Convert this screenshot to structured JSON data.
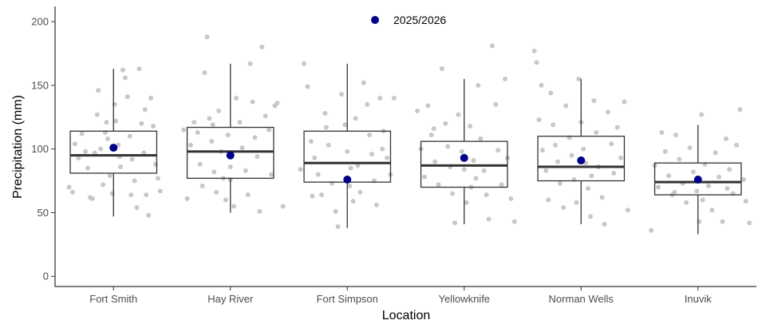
{
  "chart_data": {
    "type": "box",
    "title": "",
    "xlabel": "Location",
    "ylabel": "Precipitation (mm)",
    "ylim": [
      -8,
      212
    ],
    "yticks": [
      0,
      50,
      100,
      150,
      200
    ],
    "grid": false,
    "legend": {
      "placement": "top-center",
      "entries": [
        {
          "name": "2025/2026",
          "color": "#00008B"
        }
      ]
    },
    "colors": {
      "jitter_points": "#C8C8C8",
      "highlight_point": "#00008B",
      "box_line": "#333333",
      "axis": "#000000"
    },
    "categories": [
      "Fort Smith",
      "Hay River",
      "Fort Simpson",
      "Yellowknife",
      "Norman Wells",
      "Inuvik"
    ],
    "boxes": [
      {
        "category": "Fort Smith",
        "min": 47,
        "q1": 81,
        "median": 95,
        "q3": 114,
        "max": 163
      },
      {
        "category": "Hay River",
        "min": 50,
        "q1": 77,
        "median": 98,
        "q3": 117,
        "max": 167
      },
      {
        "category": "Fort Simpson",
        "min": 38,
        "q1": 74,
        "median": 89,
        "q3": 114,
        "max": 167
      },
      {
        "category": "Yellowknife",
        "min": 41,
        "q1": 70,
        "median": 87,
        "q3": 106,
        "max": 155
      },
      {
        "category": "Norman Wells",
        "min": 41,
        "q1": 75,
        "median": 86,
        "q3": 110,
        "max": 155
      },
      {
        "category": "Inuvik",
        "min": 33,
        "q1": 64,
        "median": 74,
        "q3": 89,
        "max": 119
      }
    ],
    "highlight": [
      {
        "category": "Fort Smith",
        "name": "2025/2026",
        "value": 101
      },
      {
        "category": "Hay River",
        "name": "2025/2026",
        "value": 95
      },
      {
        "category": "Fort Simpson",
        "name": "2025/2026",
        "value": 76
      },
      {
        "category": "Yellowknife",
        "name": "2025/2026",
        "value": 93
      },
      {
        "category": "Norman Wells",
        "name": "2025/2026",
        "value": 91
      },
      {
        "category": "Inuvik",
        "name": "2025/2026",
        "value": 76
      }
    ],
    "points": [
      {
        "category": "Fort Smith",
        "values": [
          {
            "o": -0.38,
            "v": 70
          },
          {
            "o": -0.35,
            "v": 66
          },
          {
            "o": -0.3,
            "v": 93
          },
          {
            "o": -0.27,
            "v": 112
          },
          {
            "o": -0.24,
            "v": 98
          },
          {
            "o": -0.22,
            "v": 85
          },
          {
            "o": -0.2,
            "v": 62
          },
          {
            "o": -0.18,
            "v": 61
          },
          {
            "o": -0.16,
            "v": 97
          },
          {
            "o": -0.14,
            "v": 127
          },
          {
            "o": -0.13,
            "v": 146
          },
          {
            "o": -0.11,
            "v": 100
          },
          {
            "o": -0.09,
            "v": 72
          },
          {
            "o": -0.07,
            "v": 113
          },
          {
            "o": -0.05,
            "v": 108
          },
          {
            "o": -0.03,
            "v": 79
          },
          {
            "o": -0.01,
            "v": 65
          },
          {
            "o": 0.01,
            "v": 135
          },
          {
            "o": 0.02,
            "v": 122
          },
          {
            "o": 0.04,
            "v": 103
          },
          {
            "o": 0.06,
            "v": 86
          },
          {
            "o": 0.08,
            "v": 162
          },
          {
            "o": 0.1,
            "v": 156
          },
          {
            "o": 0.12,
            "v": 141
          },
          {
            "o": 0.14,
            "v": 110
          },
          {
            "o": 0.16,
            "v": 92
          },
          {
            "o": 0.18,
            "v": 75
          },
          {
            "o": 0.2,
            "v": 54
          },
          {
            "o": 0.22,
            "v": 163
          },
          {
            "o": 0.24,
            "v": 120
          },
          {
            "o": 0.26,
            "v": 97
          },
          {
            "o": 0.28,
            "v": 64
          },
          {
            "o": 0.3,
            "v": 48
          },
          {
            "o": 0.32,
            "v": 140
          },
          {
            "o": 0.34,
            "v": 118
          },
          {
            "o": 0.36,
            "v": 88
          },
          {
            "o": 0.38,
            "v": 77
          },
          {
            "o": 0.4,
            "v": 67
          },
          {
            "o": -0.33,
            "v": 104
          },
          {
            "o": 0.15,
            "v": 64
          },
          {
            "o": -0.06,
            "v": 121
          },
          {
            "o": 0.05,
            "v": 94
          },
          {
            "o": 0.27,
            "v": 131
          }
        ]
      },
      {
        "category": "Hay River",
        "values": [
          {
            "o": -0.4,
            "v": 115
          },
          {
            "o": -0.37,
            "v": 61
          },
          {
            "o": -0.34,
            "v": 103
          },
          {
            "o": -0.31,
            "v": 121
          },
          {
            "o": -0.28,
            "v": 113
          },
          {
            "o": -0.26,
            "v": 88
          },
          {
            "o": -0.24,
            "v": 71
          },
          {
            "o": -0.22,
            "v": 160
          },
          {
            "o": -0.2,
            "v": 188
          },
          {
            "o": -0.18,
            "v": 124
          },
          {
            "o": -0.16,
            "v": 106
          },
          {
            "o": -0.14,
            "v": 82
          },
          {
            "o": -0.12,
            "v": 66
          },
          {
            "o": -0.1,
            "v": 130
          },
          {
            "o": -0.08,
            "v": 98
          },
          {
            "o": -0.06,
            "v": 77
          },
          {
            "o": -0.04,
            "v": 60
          },
          {
            "o": -0.02,
            "v": 111
          },
          {
            "o": 0.0,
            "v": 86
          },
          {
            "o": 0.03,
            "v": 55
          },
          {
            "o": 0.05,
            "v": 140
          },
          {
            "o": 0.08,
            "v": 121
          },
          {
            "o": 0.1,
            "v": 101
          },
          {
            "o": 0.13,
            "v": 83
          },
          {
            "o": 0.15,
            "v": 64
          },
          {
            "o": 0.17,
            "v": 167
          },
          {
            "o": 0.19,
            "v": 137
          },
          {
            "o": 0.21,
            "v": 109
          },
          {
            "o": 0.23,
            "v": 94
          },
          {
            "o": 0.25,
            "v": 51
          },
          {
            "o": 0.27,
            "v": 180
          },
          {
            "o": 0.3,
            "v": 126
          },
          {
            "o": 0.33,
            "v": 115
          },
          {
            "o": 0.35,
            "v": 80
          },
          {
            "o": 0.38,
            "v": 134
          },
          {
            "o": 0.4,
            "v": 136
          },
          {
            "o": 0.45,
            "v": 55
          },
          {
            "o": -0.15,
            "v": 119
          },
          {
            "o": 0.0,
            "v": 76
          }
        ]
      },
      {
        "category": "Fort Simpson",
        "values": [
          {
            "o": -0.4,
            "v": 84
          },
          {
            "o": -0.37,
            "v": 167
          },
          {
            "o": -0.34,
            "v": 149
          },
          {
            "o": -0.31,
            "v": 106
          },
          {
            "o": -0.28,
            "v": 93
          },
          {
            "o": -0.25,
            "v": 80
          },
          {
            "o": -0.22,
            "v": 64
          },
          {
            "o": -0.19,
            "v": 128
          },
          {
            "o": -0.16,
            "v": 103
          },
          {
            "o": -0.13,
            "v": 73
          },
          {
            "o": -0.1,
            "v": 51
          },
          {
            "o": -0.08,
            "v": 39
          },
          {
            "o": -0.05,
            "v": 143
          },
          {
            "o": -0.02,
            "v": 119
          },
          {
            "o": 0.0,
            "v": 98
          },
          {
            "o": 0.02,
            "v": 71
          },
          {
            "o": 0.05,
            "v": 59
          },
          {
            "o": 0.07,
            "v": 124
          },
          {
            "o": 0.09,
            "v": 87
          },
          {
            "o": 0.11,
            "v": 66
          },
          {
            "o": 0.14,
            "v": 152
          },
          {
            "o": 0.17,
            "v": 135
          },
          {
            "o": 0.19,
            "v": 111
          },
          {
            "o": 0.21,
            "v": 96
          },
          {
            "o": 0.23,
            "v": 75
          },
          {
            "o": 0.25,
            "v": 56
          },
          {
            "o": 0.28,
            "v": 140
          },
          {
            "o": 0.31,
            "v": 114
          },
          {
            "o": 0.34,
            "v": 93
          },
          {
            "o": 0.37,
            "v": 80
          },
          {
            "o": 0.4,
            "v": 140
          },
          {
            "o": -0.3,
            "v": 63
          },
          {
            "o": -0.18,
            "v": 117
          },
          {
            "o": 0.03,
            "v": 85
          },
          {
            "o": 0.3,
            "v": 100
          }
        ]
      },
      {
        "category": "Yellowknife",
        "values": [
          {
            "o": -0.4,
            "v": 130
          },
          {
            "o": -0.37,
            "v": 100
          },
          {
            "o": -0.34,
            "v": 78
          },
          {
            "o": -0.31,
            "v": 134
          },
          {
            "o": -0.28,
            "v": 111
          },
          {
            "o": -0.25,
            "v": 90
          },
          {
            "o": -0.22,
            "v": 72
          },
          {
            "o": -0.19,
            "v": 163
          },
          {
            "o": -0.16,
            "v": 120
          },
          {
            "o": -0.14,
            "v": 102
          },
          {
            "o": -0.12,
            "v": 86
          },
          {
            "o": -0.1,
            "v": 65
          },
          {
            "o": -0.08,
            "v": 42
          },
          {
            "o": -0.05,
            "v": 127
          },
          {
            "o": -0.02,
            "v": 98
          },
          {
            "o": 0.0,
            "v": 84
          },
          {
            "o": 0.02,
            "v": 58
          },
          {
            "o": 0.05,
            "v": 118
          },
          {
            "o": 0.08,
            "v": 91
          },
          {
            "o": 0.1,
            "v": 77
          },
          {
            "o": 0.12,
            "v": 150
          },
          {
            "o": 0.14,
            "v": 108
          },
          {
            "o": 0.17,
            "v": 83
          },
          {
            "o": 0.19,
            "v": 64
          },
          {
            "o": 0.21,
            "v": 45
          },
          {
            "o": 0.24,
            "v": 181
          },
          {
            "o": 0.27,
            "v": 135
          },
          {
            "o": 0.29,
            "v": 99
          },
          {
            "o": 0.32,
            "v": 72
          },
          {
            "o": 0.35,
            "v": 155
          },
          {
            "o": 0.37,
            "v": 93
          },
          {
            "o": 0.4,
            "v": 61
          },
          {
            "o": 0.43,
            "v": 43
          },
          {
            "o": -0.26,
            "v": 116
          },
          {
            "o": 0.06,
            "v": 70
          }
        ]
      },
      {
        "category": "Norman Wells",
        "values": [
          {
            "o": -0.4,
            "v": 177
          },
          {
            "o": -0.38,
            "v": 168
          },
          {
            "o": -0.36,
            "v": 123
          },
          {
            "o": -0.33,
            "v": 99
          },
          {
            "o": -0.3,
            "v": 83
          },
          {
            "o": -0.28,
            "v": 60
          },
          {
            "o": -0.26,
            "v": 144
          },
          {
            "o": -0.24,
            "v": 119
          },
          {
            "o": -0.22,
            "v": 103
          },
          {
            "o": -0.2,
            "v": 90
          },
          {
            "o": -0.18,
            "v": 73
          },
          {
            "o": -0.15,
            "v": 54
          },
          {
            "o": -0.13,
            "v": 134
          },
          {
            "o": -0.1,
            "v": 109
          },
          {
            "o": -0.08,
            "v": 95
          },
          {
            "o": -0.06,
            "v": 76
          },
          {
            "o": -0.04,
            "v": 58
          },
          {
            "o": -0.02,
            "v": 155
          },
          {
            "o": 0.0,
            "v": 121
          },
          {
            "o": 0.02,
            "v": 100
          },
          {
            "o": 0.04,
            "v": 89
          },
          {
            "o": 0.06,
            "v": 69
          },
          {
            "o": 0.08,
            "v": 47
          },
          {
            "o": 0.11,
            "v": 138
          },
          {
            "o": 0.13,
            "v": 113
          },
          {
            "o": 0.15,
            "v": 86
          },
          {
            "o": 0.18,
            "v": 62
          },
          {
            "o": 0.2,
            "v": 41
          },
          {
            "o": 0.23,
            "v": 129
          },
          {
            "o": 0.26,
            "v": 104
          },
          {
            "o": 0.28,
            "v": 81
          },
          {
            "o": 0.31,
            "v": 117
          },
          {
            "o": 0.34,
            "v": 93
          },
          {
            "o": 0.37,
            "v": 137
          },
          {
            "o": 0.4,
            "v": 52
          },
          {
            "o": -0.34,
            "v": 150
          },
          {
            "o": 0.09,
            "v": 79
          }
        ]
      },
      {
        "category": "Inuvik",
        "values": [
          {
            "o": -0.4,
            "v": 36
          },
          {
            "o": -0.37,
            "v": 87
          },
          {
            "o": -0.34,
            "v": 70
          },
          {
            "o": -0.31,
            "v": 113
          },
          {
            "o": -0.28,
            "v": 98
          },
          {
            "o": -0.25,
            "v": 79
          },
          {
            "o": -0.22,
            "v": 64
          },
          {
            "o": -0.19,
            "v": 111
          },
          {
            "o": -0.16,
            "v": 92
          },
          {
            "o": -0.13,
            "v": 73
          },
          {
            "o": -0.1,
            "v": 58
          },
          {
            "o": -0.07,
            "v": 101
          },
          {
            "o": -0.04,
            "v": 82
          },
          {
            "o": -0.01,
            "v": 67
          },
          {
            "o": 0.01,
            "v": 43
          },
          {
            "o": 0.03,
            "v": 127
          },
          {
            "o": 0.06,
            "v": 88
          },
          {
            "o": 0.09,
            "v": 71
          },
          {
            "o": 0.12,
            "v": 52
          },
          {
            "o": 0.15,
            "v": 97
          },
          {
            "o": 0.18,
            "v": 78
          },
          {
            "o": 0.21,
            "v": 43
          },
          {
            "o": 0.24,
            "v": 108
          },
          {
            "o": 0.27,
            "v": 84
          },
          {
            "o": 0.3,
            "v": 65
          },
          {
            "o": 0.33,
            "v": 103
          },
          {
            "o": 0.36,
            "v": 131
          },
          {
            "o": 0.39,
            "v": 76
          },
          {
            "o": 0.41,
            "v": 59
          },
          {
            "o": 0.44,
            "v": 42
          },
          {
            "o": -0.2,
            "v": 66
          },
          {
            "o": 0.04,
            "v": 60
          },
          {
            "o": 0.25,
            "v": 69
          }
        ]
      }
    ]
  }
}
